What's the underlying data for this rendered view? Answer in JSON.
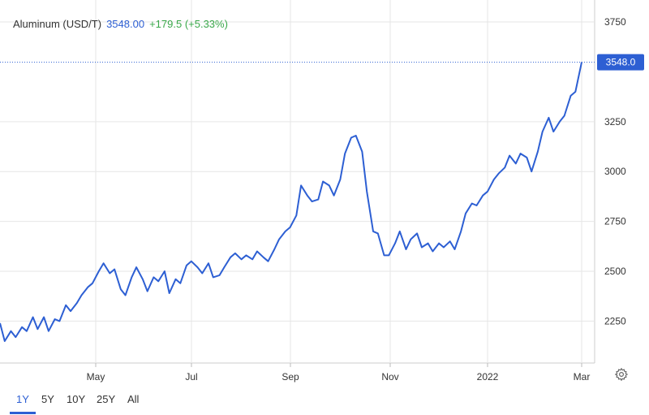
{
  "header": {
    "name": "Aluminum (USD/T)",
    "price": "3548.00",
    "change": "+179.5 (+5.33%)"
  },
  "price_tag": "3548.0",
  "ranges": [
    "1Y",
    "5Y",
    "10Y",
    "25Y",
    "All"
  ],
  "active_range": "1Y",
  "colors": {
    "line": "#2d5fd3",
    "positive": "#3aa84a",
    "grid": "#e6e6e6",
    "text": "#333333"
  },
  "icons": {
    "settings": "gear-icon"
  },
  "chart_data": {
    "type": "line",
    "title": "Aluminum (USD/T)",
    "xlabel": "",
    "ylabel": "",
    "x_ticks": [
      "May",
      "Jul",
      "Sep",
      "Nov",
      "2022",
      "Mar"
    ],
    "y_ticks": [
      2250,
      2500,
      2750,
      3000,
      3250,
      3750
    ],
    "ylim": [
      2040,
      3860
    ],
    "x_range": [
      "2021-03-01",
      "2022-03-07"
    ],
    "grid": true,
    "last_value": 3548.0,
    "series": [
      {
        "name": "Aluminum",
        "values": [
          [
            "2021-03-01",
            2240
          ],
          [
            "2021-03-04",
            2150
          ],
          [
            "2021-03-08",
            2200
          ],
          [
            "2021-03-11",
            2170
          ],
          [
            "2021-03-15",
            2220
          ],
          [
            "2021-03-18",
            2200
          ],
          [
            "2021-03-22",
            2270
          ],
          [
            "2021-03-25",
            2210
          ],
          [
            "2021-03-29",
            2270
          ],
          [
            "2021-04-01",
            2200
          ],
          [
            "2021-04-05",
            2260
          ],
          [
            "2021-04-08",
            2250
          ],
          [
            "2021-04-12",
            2330
          ],
          [
            "2021-04-15",
            2300
          ],
          [
            "2021-04-19",
            2340
          ],
          [
            "2021-04-22",
            2380
          ],
          [
            "2021-04-26",
            2420
          ],
          [
            "2021-04-29",
            2440
          ],
          [
            "2021-05-03",
            2500
          ],
          [
            "2021-05-06",
            2540
          ],
          [
            "2021-05-10",
            2490
          ],
          [
            "2021-05-13",
            2510
          ],
          [
            "2021-05-17",
            2410
          ],
          [
            "2021-05-20",
            2380
          ],
          [
            "2021-05-24",
            2470
          ],
          [
            "2021-05-27",
            2520
          ],
          [
            "2021-05-31",
            2460
          ],
          [
            "2021-06-03",
            2400
          ],
          [
            "2021-06-07",
            2470
          ],
          [
            "2021-06-10",
            2450
          ],
          [
            "2021-06-14",
            2500
          ],
          [
            "2021-06-17",
            2390
          ],
          [
            "2021-06-21",
            2460
          ],
          [
            "2021-06-24",
            2440
          ],
          [
            "2021-06-28",
            2530
          ],
          [
            "2021-07-01",
            2550
          ],
          [
            "2021-07-05",
            2520
          ],
          [
            "2021-07-08",
            2490
          ],
          [
            "2021-07-12",
            2540
          ],
          [
            "2021-07-15",
            2470
          ],
          [
            "2021-07-19",
            2480
          ],
          [
            "2021-07-22",
            2520
          ],
          [
            "2021-07-26",
            2570
          ],
          [
            "2021-07-29",
            2590
          ],
          [
            "2021-08-02",
            2560
          ],
          [
            "2021-08-05",
            2580
          ],
          [
            "2021-08-09",
            2560
          ],
          [
            "2021-08-12",
            2600
          ],
          [
            "2021-08-16",
            2570
          ],
          [
            "2021-08-19",
            2550
          ],
          [
            "2021-08-23",
            2610
          ],
          [
            "2021-08-26",
            2660
          ],
          [
            "2021-08-30",
            2700
          ],
          [
            "2021-09-02",
            2720
          ],
          [
            "2021-09-06",
            2780
          ],
          [
            "2021-09-09",
            2930
          ],
          [
            "2021-09-13",
            2880
          ],
          [
            "2021-09-16",
            2850
          ],
          [
            "2021-09-20",
            2860
          ],
          [
            "2021-09-23",
            2950
          ],
          [
            "2021-09-27",
            2930
          ],
          [
            "2021-09-30",
            2880
          ],
          [
            "2021-10-04",
            2960
          ],
          [
            "2021-10-07",
            3090
          ],
          [
            "2021-10-11",
            3170
          ],
          [
            "2021-10-14",
            3180
          ],
          [
            "2021-10-18",
            3100
          ],
          [
            "2021-10-21",
            2900
          ],
          [
            "2021-10-25",
            2700
          ],
          [
            "2021-10-28",
            2690
          ],
          [
            "2021-11-01",
            2580
          ],
          [
            "2021-11-04",
            2580
          ],
          [
            "2021-11-08",
            2640
          ],
          [
            "2021-11-11",
            2700
          ],
          [
            "2021-11-15",
            2610
          ],
          [
            "2021-11-18",
            2660
          ],
          [
            "2021-11-22",
            2690
          ],
          [
            "2021-11-25",
            2620
          ],
          [
            "2021-11-29",
            2640
          ],
          [
            "2021-12-02",
            2600
          ],
          [
            "2021-12-06",
            2640
          ],
          [
            "2021-12-09",
            2620
          ],
          [
            "2021-12-13",
            2650
          ],
          [
            "2021-12-16",
            2610
          ],
          [
            "2021-12-20",
            2700
          ],
          [
            "2021-12-23",
            2790
          ],
          [
            "2021-12-27",
            2840
          ],
          [
            "2021-12-30",
            2830
          ],
          [
            "2022-01-03",
            2880
          ],
          [
            "2022-01-06",
            2900
          ],
          [
            "2022-01-10",
            2960
          ],
          [
            "2022-01-13",
            2990
          ],
          [
            "2022-01-17",
            3020
          ],
          [
            "2022-01-20",
            3080
          ],
          [
            "2022-01-24",
            3040
          ],
          [
            "2022-01-27",
            3090
          ],
          [
            "2022-01-31",
            3070
          ],
          [
            "2022-02-03",
            3000
          ],
          [
            "2022-02-07",
            3100
          ],
          [
            "2022-02-10",
            3200
          ],
          [
            "2022-02-14",
            3270
          ],
          [
            "2022-02-17",
            3200
          ],
          [
            "2022-02-21",
            3250
          ],
          [
            "2022-02-24",
            3280
          ],
          [
            "2022-02-28",
            3380
          ],
          [
            "2022-03-03",
            3400
          ],
          [
            "2022-03-07",
            3548
          ]
        ]
      }
    ]
  }
}
